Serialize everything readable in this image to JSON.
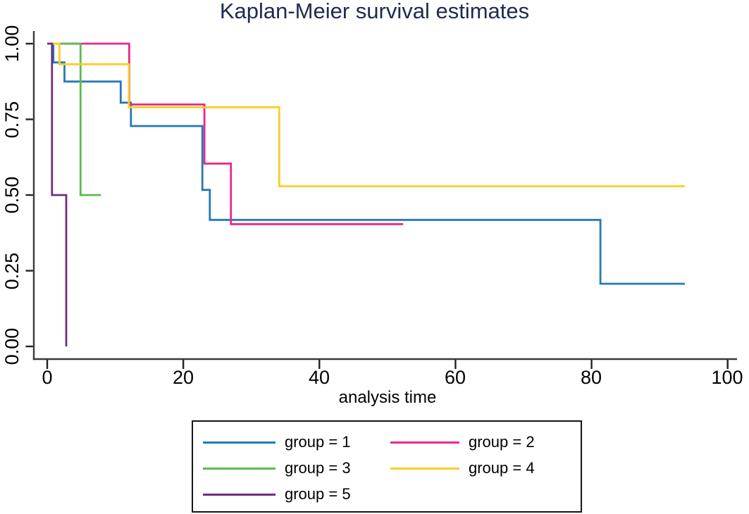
{
  "title": "Kaplan-Meier survival estimates",
  "chart_data": {
    "type": "line",
    "subtype": "kaplan-meier-step",
    "title": "Kaplan-Meier survival estimates",
    "xlabel": "analysis time",
    "ylabel": "",
    "xlim": [
      0,
      100
    ],
    "ylim": [
      0.0,
      1.0
    ],
    "xticks": [
      "0",
      "20",
      "40",
      "60",
      "80",
      "100"
    ],
    "yticks": [
      "1.00",
      "0.75",
      "0.50",
      "0.25",
      "0.00"
    ],
    "ytick_values": [
      1.0,
      0.75,
      0.5,
      0.25,
      0.0
    ],
    "grid": false,
    "legend_position": "bottom",
    "series": [
      {
        "name": "group = 1",
        "color": "#2579b5",
        "points": [
          [
            0,
            1.0
          ],
          [
            0.9,
            1.0
          ],
          [
            0.9,
            0.938
          ],
          [
            2.54,
            0.938
          ],
          [
            2.54,
            0.875
          ],
          [
            10.8,
            0.875
          ],
          [
            10.8,
            0.805
          ],
          [
            12.3,
            0.805
          ],
          [
            12.3,
            0.728
          ],
          [
            22.8,
            0.728
          ],
          [
            22.8,
            0.517
          ],
          [
            23.9,
            0.517
          ],
          [
            23.9,
            0.418
          ],
          [
            81.3,
            0.418
          ],
          [
            81.3,
            0.207
          ],
          [
            93.7,
            0.207
          ]
        ]
      },
      {
        "name": "group = 2",
        "color": "#e7298a",
        "points": [
          [
            0,
            1.0
          ],
          [
            12.05,
            1.0
          ],
          [
            12.05,
            0.799
          ],
          [
            23.1,
            0.799
          ],
          [
            23.1,
            0.604
          ],
          [
            27,
            0.604
          ],
          [
            27,
            0.404
          ],
          [
            52.3,
            0.404
          ]
        ]
      },
      {
        "name": "group = 3",
        "color": "#5cbb4f",
        "points": [
          [
            0,
            1.0
          ],
          [
            4.9,
            1.0
          ],
          [
            4.9,
            0.5
          ],
          [
            7.9,
            0.5
          ]
        ]
      },
      {
        "name": "group = 4",
        "color": "#fbcd27",
        "points": [
          [
            0,
            1.0
          ],
          [
            1.8,
            1.0
          ],
          [
            1.8,
            0.932
          ],
          [
            12,
            0.932
          ],
          [
            12,
            0.79
          ],
          [
            34.1,
            0.79
          ],
          [
            34.1,
            0.529
          ],
          [
            93.7,
            0.529
          ]
        ]
      },
      {
        "name": "group = 5",
        "color": "#6f2e7f",
        "points": [
          [
            0,
            1.0
          ],
          [
            0.7,
            1.0
          ],
          [
            0.7,
            0.5
          ],
          [
            2.8,
            0.5
          ],
          [
            2.8,
            0.0
          ]
        ]
      }
    ]
  },
  "legend": {
    "items": [
      {
        "label": "group = 1"
      },
      {
        "label": "group = 2"
      },
      {
        "label": "group = 3"
      },
      {
        "label": "group = 4"
      },
      {
        "label": "group = 5"
      }
    ]
  },
  "colors": {
    "title_text": "#202a52",
    "axis_line": "#3a3a3a",
    "tick_mark": "#222222",
    "tick_text": "#000000",
    "legend_border": "#151515",
    "background": "#ffffff"
  }
}
